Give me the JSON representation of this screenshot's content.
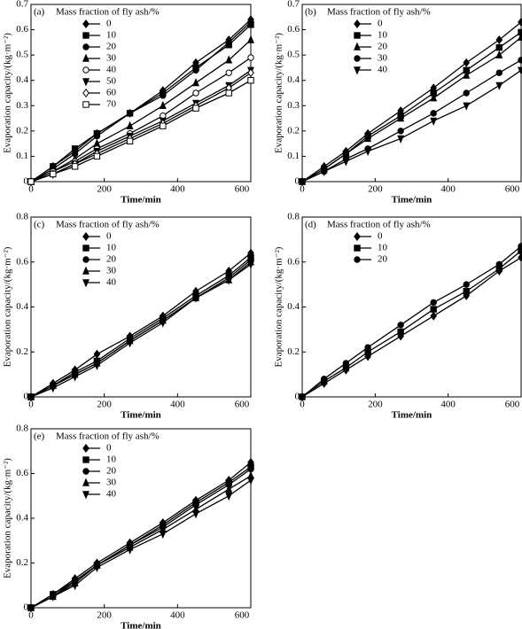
{
  "chart_data": [
    {
      "type": "line",
      "panel_label": "(a)",
      "legend_title": "Mass fraction of fly ash/%",
      "xlabel": "Time/min",
      "ylabel": "Evaporation capacity/(kg·m⁻²)",
      "x": [
        0,
        60,
        120,
        180,
        270,
        360,
        450,
        540,
        600
      ],
      "xlim": [
        0,
        600
      ],
      "xticks": [
        0,
        200,
        400,
        600
      ],
      "ylim": [
        0,
        0.7
      ],
      "yticks": [
        0,
        0.1,
        0.2,
        0.3,
        0.4,
        0.5,
        0.6,
        0.7
      ],
      "series": [
        {
          "name": "0",
          "color": "#000",
          "marker": "diamond",
          "values": [
            0,
            0.06,
            0.12,
            0.19,
            0.27,
            0.36,
            0.47,
            0.56,
            0.64
          ]
        },
        {
          "name": "10",
          "color": "#000",
          "marker": "square",
          "values": [
            0,
            0.06,
            0.13,
            0.19,
            0.27,
            0.35,
            0.45,
            0.54,
            0.62
          ]
        },
        {
          "name": "20",
          "color": "#000",
          "marker": "circle",
          "values": [
            0,
            0.05,
            0.11,
            0.18,
            0.27,
            0.34,
            0.44,
            0.55,
            0.63
          ]
        },
        {
          "name": "30",
          "color": "#000",
          "marker": "triangle",
          "values": [
            0,
            0.04,
            0.09,
            0.15,
            0.22,
            0.3,
            0.39,
            0.48,
            0.56
          ]
        },
        {
          "name": "40",
          "color": "#000",
          "marker": "open-circle",
          "values": [
            0,
            0.04,
            0.08,
            0.13,
            0.19,
            0.26,
            0.35,
            0.43,
            0.49
          ]
        },
        {
          "name": "50",
          "color": "#000",
          "marker": "down-triangle",
          "values": [
            0,
            0.03,
            0.07,
            0.12,
            0.18,
            0.24,
            0.31,
            0.38,
            0.44
          ]
        },
        {
          "name": "60",
          "color": "#000",
          "marker": "open-diamond",
          "values": [
            0,
            0.03,
            0.07,
            0.11,
            0.17,
            0.23,
            0.3,
            0.37,
            0.43
          ]
        },
        {
          "name": "70",
          "color": "#000",
          "marker": "open-square",
          "values": [
            0,
            0.03,
            0.06,
            0.1,
            0.16,
            0.22,
            0.29,
            0.35,
            0.4
          ]
        }
      ]
    },
    {
      "type": "line",
      "panel_label": "(b)",
      "legend_title": "Mass fraction of fly ash/%",
      "xlabel": "Time/min",
      "ylabel": "Evaporation capacity/(kg·m⁻²)",
      "x": [
        0,
        60,
        120,
        180,
        270,
        360,
        450,
        540,
        600
      ],
      "xlim": [
        0,
        600
      ],
      "xticks": [
        0,
        200,
        400,
        600
      ],
      "ylim": [
        0,
        0.7
      ],
      "yticks": [
        0,
        0.1,
        0.2,
        0.3,
        0.4,
        0.5,
        0.6,
        0.7
      ],
      "series": [
        {
          "name": "0",
          "color": "#000",
          "marker": "diamond",
          "values": [
            0,
            0.06,
            0.12,
            0.19,
            0.28,
            0.37,
            0.47,
            0.56,
            0.63
          ]
        },
        {
          "name": "10",
          "color": "#000",
          "marker": "square",
          "values": [
            0,
            0.05,
            0.11,
            0.18,
            0.26,
            0.35,
            0.44,
            0.53,
            0.59
          ]
        },
        {
          "name": "20",
          "color": "#000",
          "marker": "triangle",
          "values": [
            0,
            0.05,
            0.11,
            0.17,
            0.25,
            0.33,
            0.42,
            0.5,
            0.57
          ]
        },
        {
          "name": "30",
          "color": "#000",
          "marker": "circle",
          "values": [
            0,
            0.04,
            0.09,
            0.13,
            0.2,
            0.27,
            0.35,
            0.43,
            0.48
          ]
        },
        {
          "name": "40",
          "color": "#000",
          "marker": "down-triangle",
          "values": [
            0,
            0.04,
            0.08,
            0.12,
            0.17,
            0.24,
            0.3,
            0.38,
            0.44
          ]
        }
      ]
    },
    {
      "type": "line",
      "panel_label": "(c)",
      "legend_title": "Mass fraction of fly ash/%",
      "xlabel": "Time/min",
      "ylabel": "Evaporation capacity/(kg·m⁻²)",
      "x": [
        0,
        60,
        120,
        180,
        270,
        360,
        450,
        540,
        600
      ],
      "xlim": [
        0,
        600
      ],
      "xticks": [
        0,
        200,
        400,
        600
      ],
      "ylim": [
        0,
        0.8
      ],
      "yticks": [
        0,
        0.2,
        0.4,
        0.6,
        0.8
      ],
      "series": [
        {
          "name": "0",
          "color": "#000",
          "marker": "diamond",
          "values": [
            0,
            0.06,
            0.12,
            0.19,
            0.27,
            0.36,
            0.47,
            0.56,
            0.64
          ]
        },
        {
          "name": "10",
          "color": "#000",
          "marker": "square",
          "values": [
            0,
            0.05,
            0.11,
            0.16,
            0.26,
            0.35,
            0.45,
            0.54,
            0.62
          ]
        },
        {
          "name": "20",
          "color": "#000",
          "marker": "circle",
          "values": [
            0,
            0.05,
            0.1,
            0.15,
            0.25,
            0.34,
            0.44,
            0.53,
            0.61
          ]
        },
        {
          "name": "30",
          "color": "#000",
          "marker": "triangle",
          "values": [
            0,
            0.05,
            0.1,
            0.15,
            0.25,
            0.34,
            0.44,
            0.52,
            0.6
          ]
        },
        {
          "name": "40",
          "color": "#000",
          "marker": "down-triangle",
          "values": [
            0,
            0.04,
            0.09,
            0.14,
            0.24,
            0.33,
            0.44,
            0.52,
            0.59
          ]
        }
      ]
    },
    {
      "type": "line",
      "panel_label": "(d)",
      "legend_title": "Mass fraction of fly ash/%",
      "xlabel": "Time/min",
      "ylabel": "Evaporation capacity/(kg·m⁻²)",
      "x": [
        0,
        60,
        120,
        180,
        270,
        360,
        450,
        540,
        600
      ],
      "xlim": [
        0,
        600
      ],
      "xticks": [
        0,
        200,
        400,
        600
      ],
      "ylim": [
        0,
        0.8
      ],
      "yticks": [
        0,
        0.2,
        0.4,
        0.6,
        0.8
      ],
      "series": [
        {
          "name": "0",
          "color": "#000",
          "marker": "diamond",
          "values": [
            0,
            0.06,
            0.12,
            0.18,
            0.27,
            0.36,
            0.45,
            0.56,
            0.62
          ]
        },
        {
          "name": "10",
          "color": "#000",
          "marker": "square",
          "values": [
            0,
            0.07,
            0.13,
            0.2,
            0.29,
            0.39,
            0.47,
            0.57,
            0.65
          ]
        },
        {
          "name": "20",
          "color": "#000",
          "marker": "circle",
          "values": [
            0,
            0.08,
            0.15,
            0.22,
            0.32,
            0.42,
            0.5,
            0.59,
            0.67
          ]
        }
      ]
    },
    {
      "type": "line",
      "panel_label": "(e)",
      "legend_title": "Mass fraction of fly ash/%",
      "xlabel": "Time/min",
      "ylabel": "Evaporation capacity/(kg·m⁻²)",
      "x": [
        0,
        60,
        120,
        180,
        270,
        360,
        450,
        540,
        600
      ],
      "xlim": [
        0,
        600
      ],
      "xticks": [
        0,
        200,
        400,
        600
      ],
      "ylim": [
        0,
        0.8
      ],
      "yticks": [
        0,
        0.2,
        0.4,
        0.6,
        0.8
      ],
      "series": [
        {
          "name": "0",
          "color": "#000",
          "marker": "diamond",
          "values": [
            0,
            0.06,
            0.13,
            0.2,
            0.29,
            0.38,
            0.48,
            0.57,
            0.65
          ]
        },
        {
          "name": "10",
          "color": "#000",
          "marker": "square",
          "values": [
            0,
            0.06,
            0.12,
            0.19,
            0.28,
            0.37,
            0.47,
            0.56,
            0.63
          ]
        },
        {
          "name": "20",
          "color": "#000",
          "marker": "circle",
          "values": [
            0,
            0.05,
            0.12,
            0.19,
            0.28,
            0.36,
            0.46,
            0.55,
            0.62
          ]
        },
        {
          "name": "30",
          "color": "#000",
          "marker": "triangle",
          "values": [
            0,
            0.05,
            0.11,
            0.19,
            0.27,
            0.35,
            0.44,
            0.53,
            0.59
          ]
        },
        {
          "name": "40",
          "color": "#000",
          "marker": "down-triangle",
          "values": [
            0,
            0.05,
            0.1,
            0.18,
            0.26,
            0.33,
            0.42,
            0.5,
            0.57
          ]
        }
      ]
    }
  ]
}
